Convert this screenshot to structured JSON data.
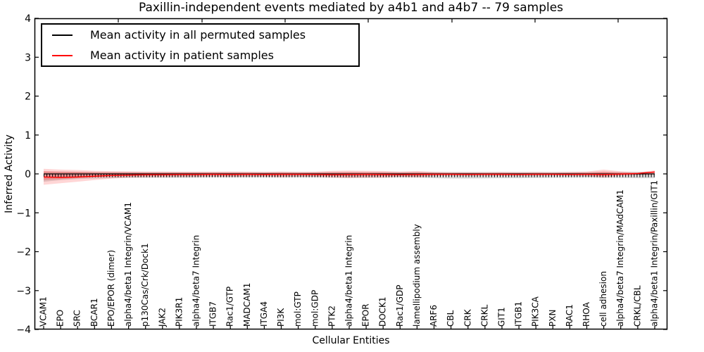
{
  "title": "Paxillin-independent events mediated by a4b1 and a4b7 -- 79 samples",
  "sample_count": 79,
  "legend": {
    "entries": [
      {
        "label": "Mean activity in all permuted samples",
        "color": "#000000"
      },
      {
        "label": "Mean activity in patient samples",
        "color": "#ff0000"
      }
    ]
  },
  "chart_data": {
    "type": "line",
    "title": "Paxillin-independent events mediated by a4b1 and a4b7 -- 79 samples",
    "xlabel": "Cellular Entities",
    "ylabel": "Inferred Activity",
    "ylim": [
      -4,
      4
    ],
    "yticks": [
      4,
      3,
      2,
      1,
      0,
      -1,
      -2,
      -3,
      -4
    ],
    "ytick_labels": [
      "4",
      "3",
      "2",
      "1",
      "0",
      "−1",
      "−2",
      "−3",
      "−4"
    ],
    "grid": false,
    "legend_position": "upper left",
    "categories": [
      "VCAM1",
      "EPO",
      "SRC",
      "BCAR1",
      "EPO/EPOR (dimer)",
      "alpha4/beta1 Integrin/VCAM1",
      "p130Cas/Crk/Dock1",
      "JAK2",
      "PIK3R1",
      "alpha4/beta7 Integrin",
      "ITGB7",
      "Rac1/GTP",
      "MADCAM1",
      "ITGA4",
      "PI3K",
      "mol:GTP",
      "mol:GDP",
      "PTK2",
      "alpha4/beta1 Integrin",
      "EPOR",
      "DOCK1",
      "Rac1/GDP",
      "lamellipodium assembly",
      "ARF6",
      "CBL",
      "CRK",
      "CRKL",
      "GIT1",
      "ITGB1",
      "PIK3CA",
      "PXN",
      "RAC1",
      "RHOA",
      "cell adhesion",
      "alpha4/beta7 Integrin/MAdCAM1",
      "CRKL/CBL",
      "alpha4/beta1 Integrin/Paxillin/GIT1"
    ],
    "series": [
      {
        "name": "Mean activity in all permuted samples",
        "color": "#000000",
        "values": [
          0,
          0,
          0,
          0,
          0,
          0,
          0,
          0,
          0,
          0,
          0,
          0,
          0,
          0,
          0,
          0,
          0,
          0,
          0,
          0,
          0,
          0,
          0,
          0,
          0,
          0,
          0,
          0,
          0,
          0,
          0,
          0,
          0,
          0,
          0,
          0,
          0
        ]
      },
      {
        "name": "Mean activity in patient samples",
        "color": "#ff0000",
        "values": [
          -0.08,
          -0.09,
          -0.08,
          -0.06,
          -0.04,
          -0.03,
          -0.02,
          -0.02,
          -0.015,
          -0.015,
          -0.01,
          -0.015,
          -0.01,
          -0.015,
          -0.01,
          -0.01,
          -0.015,
          -0.02,
          -0.015,
          -0.01,
          -0.015,
          -0.02,
          -0.015,
          -0.01,
          -0.01,
          -0.015,
          -0.01,
          -0.01,
          -0.015,
          -0.01,
          -0.01,
          -0.015,
          -0.01,
          -0.015,
          -0.005,
          0.01,
          0.05
        ]
      }
    ],
    "bands": [
      {
        "name": "permuted-samples-range",
        "color": "#808080",
        "opacity": 0.28,
        "upper": [
          0.06,
          0.06,
          0.055,
          0.05,
          0.05,
          0.05,
          0.05,
          0.05,
          0.05,
          0.05,
          0.05,
          0.05,
          0.05,
          0.05,
          0.05,
          0.05,
          0.05,
          0.05,
          0.05,
          0.05,
          0.05,
          0.05,
          0.05,
          0.05,
          0.05,
          0.05,
          0.05,
          0.05,
          0.05,
          0.05,
          0.05,
          0.05,
          0.05,
          0.05,
          0.05,
          0.055,
          0.055
        ],
        "lower": [
          -0.2,
          -0.16,
          -0.13,
          -0.12,
          -0.11,
          -0.1,
          -0.1,
          -0.1,
          -0.1,
          -0.095,
          -0.09,
          -0.09,
          -0.09,
          -0.09,
          -0.09,
          -0.09,
          -0.09,
          -0.095,
          -0.1,
          -0.1,
          -0.095,
          -0.09,
          -0.09,
          -0.11,
          -0.12,
          -0.12,
          -0.115,
          -0.11,
          -0.11,
          -0.105,
          -0.1,
          -0.095,
          -0.09,
          -0.1,
          -0.105,
          -0.11,
          -0.11
        ]
      },
      {
        "name": "patient-samples-range",
        "color": "#ff0000",
        "opacity": 0.16,
        "upper": [
          0.13,
          0.11,
          0.1,
          0.08,
          0.07,
          0.065,
          0.06,
          0.06,
          0.055,
          0.055,
          0.055,
          0.06,
          0.055,
          0.05,
          0.06,
          0.05,
          0.055,
          0.08,
          0.085,
          0.08,
          0.075,
          0.06,
          0.075,
          0.05,
          0.04,
          0.04,
          0.04,
          0.045,
          0.04,
          0.045,
          0.04,
          0.05,
          0.06,
          0.11,
          0.065,
          0.04,
          0.09
        ],
        "lower": [
          -0.28,
          -0.24,
          -0.2,
          -0.16,
          -0.12,
          -0.1,
          -0.09,
          -0.085,
          -0.08,
          -0.08,
          -0.075,
          -0.08,
          -0.075,
          -0.07,
          -0.09,
          -0.07,
          -0.075,
          -0.1,
          -0.11,
          -0.1,
          -0.1,
          -0.08,
          -0.095,
          -0.06,
          -0.05,
          -0.05,
          -0.05,
          -0.055,
          -0.05,
          -0.05,
          -0.045,
          -0.05,
          -0.06,
          -0.1,
          -0.05,
          -0.03,
          -0.02
        ]
      }
    ]
  }
}
